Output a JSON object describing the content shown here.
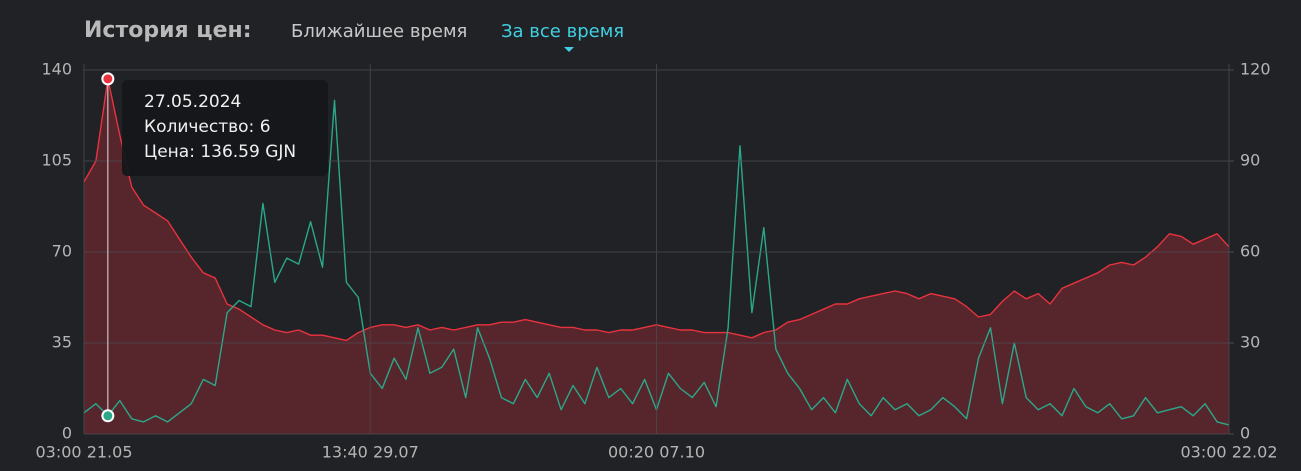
{
  "header": {
    "title": "История цен:",
    "tabs": [
      "Ближайшее время",
      "За все время"
    ],
    "active_tab": 1
  },
  "chart_data": {
    "type": "line",
    "categories": [
      "03:00 21.05",
      null,
      null,
      null,
      null,
      null,
      null,
      null,
      null,
      null,
      null,
      null,
      null,
      null,
      null,
      null,
      null,
      null,
      null,
      null,
      null,
      null,
      null,
      null,
      "13:40 29.07",
      null,
      null,
      null,
      null,
      null,
      null,
      null,
      null,
      null,
      null,
      null,
      null,
      null,
      null,
      null,
      null,
      null,
      null,
      null,
      null,
      null,
      null,
      null,
      "00:20 07.10",
      null,
      null,
      null,
      null,
      null,
      null,
      null,
      null,
      null,
      null,
      null,
      null,
      null,
      null,
      null,
      null,
      null,
      null,
      null,
      null,
      null,
      null,
      null,
      null,
      null,
      null,
      null,
      null,
      null,
      null,
      null,
      null,
      null,
      null,
      null,
      null,
      null,
      null,
      null,
      null,
      null,
      null,
      null,
      null,
      null,
      null,
      null,
      "03:00 22.02"
    ],
    "series": [
      {
        "color": "#e8333f",
        "fill": "#5b262c",
        "axis": "y",
        "values": [
          97,
          105,
          136.59,
          115,
          95,
          88,
          85,
          82,
          75,
          68,
          62,
          60,
          50,
          48,
          45,
          42,
          40,
          39,
          40,
          38,
          38,
          37,
          36,
          39,
          41,
          42,
          42,
          41,
          42,
          40,
          41,
          40,
          41,
          42,
          42,
          43,
          43,
          44,
          43,
          42,
          41,
          41,
          40,
          40,
          39,
          40,
          40,
          41,
          42,
          41,
          40,
          40,
          39,
          39,
          39,
          38,
          37,
          39,
          40,
          43,
          44,
          46,
          48,
          50,
          50,
          52,
          53,
          54,
          55,
          54,
          52,
          54,
          53,
          52,
          49,
          45,
          46,
          51,
          55,
          52,
          54,
          50,
          56,
          58,
          60,
          62,
          65,
          66,
          65,
          68,
          72,
          77,
          76,
          73,
          75,
          77,
          72
        ]
      },
      {
        "color": "#2ba88a",
        "axis": "y2",
        "values": [
          7,
          10,
          6,
          11,
          5,
          4,
          6,
          4,
          7,
          10,
          18,
          16,
          40,
          44,
          42,
          76,
          50,
          58,
          56,
          70,
          55,
          110,
          50,
          45,
          20,
          15,
          25,
          18,
          35,
          20,
          22,
          28,
          12,
          35,
          25,
          12,
          10,
          18,
          12,
          20,
          8,
          16,
          10,
          22,
          12,
          15,
          10,
          18,
          8,
          20,
          15,
          12,
          17,
          9,
          35,
          95,
          40,
          68,
          28,
          20,
          15,
          8,
          12,
          7,
          18,
          10,
          6,
          12,
          8,
          10,
          6,
          8,
          12,
          9,
          5,
          25,
          35,
          10,
          30,
          12,
          8,
          10,
          6,
          15,
          9,
          7,
          10,
          5,
          6,
          12,
          7,
          8,
          9,
          6,
          10,
          4,
          3
        ]
      }
    ],
    "ylim": [
      0,
      140
    ],
    "yticks": [
      0,
      35,
      70,
      105,
      140
    ],
    "y2lim": [
      0,
      120
    ],
    "y2ticks": [
      0,
      30,
      60,
      90,
      120
    ],
    "grid": true,
    "tooltip": {
      "index": 2,
      "lines": [
        "27.05.2024",
        "Количество: 6",
        "Цена: 136.59 GJN"
      ]
    }
  }
}
